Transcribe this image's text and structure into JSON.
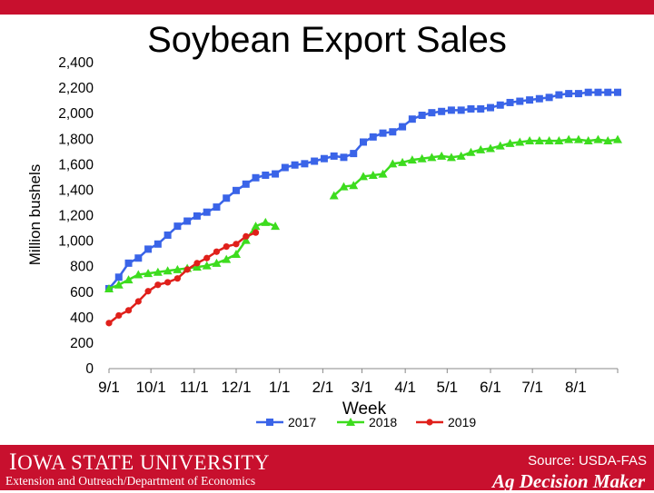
{
  "title": "Soybean Export Sales",
  "footer": {
    "university_first": "I",
    "university_rest": "OWA STATE UNIVERSITY",
    "department": "Extension and Outreach/Department of Economics",
    "source": "Source: USDA-FAS",
    "brand": "Ag Decision Maker"
  },
  "colors": {
    "banner": "#c8102e",
    "series_2017": "#3a64e8",
    "series_2018": "#3ddc1e",
    "series_2019": "#e0201b"
  },
  "chart_data": {
    "type": "line",
    "title": "Soybean Export Sales",
    "xlabel": "Week",
    "ylabel": "Million bushels",
    "ylim": [
      0,
      2400
    ],
    "yticks": [
      0,
      200,
      400,
      600,
      800,
      1000,
      1200,
      1400,
      1600,
      1800,
      2000,
      2200,
      2400
    ],
    "xticks": [
      "9/1",
      "10/1",
      "11/1",
      "12/1",
      "1/1",
      "2/1",
      "3/1",
      "4/1",
      "5/1",
      "6/1",
      "7/1",
      "8/1"
    ],
    "grid": false,
    "legend": "bottom",
    "series": [
      {
        "name": "2017",
        "marker": "square",
        "points": [
          [
            "9/1",
            620
          ],
          [
            "9/8",
            710
          ],
          [
            "9/15",
            820
          ],
          [
            "9/22",
            860
          ],
          [
            "9/29",
            930
          ],
          [
            "10/6",
            970
          ],
          [
            "10/13",
            1040
          ],
          [
            "10/20",
            1110
          ],
          [
            "10/27",
            1150
          ],
          [
            "11/3",
            1190
          ],
          [
            "11/10",
            1220
          ],
          [
            "11/17",
            1260
          ],
          [
            "11/24",
            1330
          ],
          [
            "12/1",
            1390
          ],
          [
            "12/8",
            1440
          ],
          [
            "12/15",
            1490
          ],
          [
            "12/22",
            1510
          ],
          [
            "12/29",
            1520
          ],
          [
            "1/5",
            1570
          ],
          [
            "1/12",
            1590
          ],
          [
            "1/19",
            1600
          ],
          [
            "1/26",
            1620
          ],
          [
            "2/2",
            1640
          ],
          [
            "2/9",
            1660
          ],
          [
            "2/16",
            1650
          ],
          [
            "2/23",
            1680
          ],
          [
            "3/2",
            1770
          ],
          [
            "3/9",
            1810
          ],
          [
            "3/16",
            1840
          ],
          [
            "3/23",
            1850
          ],
          [
            "3/30",
            1890
          ],
          [
            "4/6",
            1950
          ],
          [
            "4/13",
            1980
          ],
          [
            "4/20",
            2000
          ],
          [
            "4/27",
            2010
          ],
          [
            "5/4",
            2020
          ],
          [
            "5/11",
            2020
          ],
          [
            "5/18",
            2030
          ],
          [
            "5/25",
            2030
          ],
          [
            "6/1",
            2040
          ],
          [
            "6/8",
            2060
          ],
          [
            "6/15",
            2080
          ],
          [
            "6/22",
            2090
          ],
          [
            "6/29",
            2100
          ],
          [
            "7/6",
            2110
          ],
          [
            "7/13",
            2120
          ],
          [
            "7/20",
            2140
          ],
          [
            "7/27",
            2150
          ],
          [
            "8/3",
            2150
          ],
          [
            "8/10",
            2160
          ],
          [
            "8/17",
            2160
          ],
          [
            "8/24",
            2160
          ],
          [
            "8/31",
            2160
          ]
        ]
      },
      {
        "name": "2018",
        "marker": "triangle",
        "points": [
          [
            "9/1",
            620
          ],
          [
            "9/8",
            650
          ],
          [
            "9/15",
            690
          ],
          [
            "9/22",
            730
          ],
          [
            "9/29",
            740
          ],
          [
            "10/6",
            750
          ],
          [
            "10/13",
            760
          ],
          [
            "10/20",
            770
          ],
          [
            "10/27",
            780
          ],
          [
            "11/3",
            790
          ],
          [
            "11/10",
            800
          ],
          [
            "11/17",
            820
          ],
          [
            "11/24",
            850
          ],
          [
            "12/1",
            890
          ],
          [
            "12/8",
            1000
          ],
          [
            "12/15",
            1110
          ],
          [
            "12/22",
            1140
          ],
          [
            "12/29",
            1110
          ],
          null,
          [
            "2/9",
            1350
          ],
          [
            "2/16",
            1420
          ],
          [
            "2/23",
            1430
          ],
          [
            "3/2",
            1500
          ],
          [
            "3/9",
            1510
          ],
          [
            "3/16",
            1520
          ],
          [
            "3/23",
            1600
          ],
          [
            "3/30",
            1610
          ],
          [
            "4/6",
            1630
          ],
          [
            "4/13",
            1640
          ],
          [
            "4/20",
            1650
          ],
          [
            "4/27",
            1660
          ],
          [
            "5/4",
            1650
          ],
          [
            "5/11",
            1660
          ],
          [
            "5/18",
            1690
          ],
          [
            "5/25",
            1710
          ],
          [
            "6/1",
            1720
          ],
          [
            "6/8",
            1740
          ],
          [
            "6/15",
            1760
          ],
          [
            "6/22",
            1770
          ],
          [
            "6/29",
            1780
          ],
          [
            "7/6",
            1780
          ],
          [
            "7/13",
            1780
          ],
          [
            "7/20",
            1780
          ],
          [
            "7/27",
            1790
          ],
          [
            "8/3",
            1790
          ],
          [
            "8/10",
            1780
          ],
          [
            "8/17",
            1790
          ],
          [
            "8/24",
            1780
          ],
          [
            "8/31",
            1790
          ]
        ]
      },
      {
        "name": "2019",
        "marker": "circle",
        "points": [
          [
            "9/1",
            350
          ],
          [
            "9/8",
            410
          ],
          [
            "9/15",
            450
          ],
          [
            "9/22",
            520
          ],
          [
            "9/29",
            600
          ],
          [
            "10/6",
            650
          ],
          [
            "10/13",
            670
          ],
          [
            "10/20",
            700
          ],
          [
            "10/27",
            770
          ],
          [
            "11/3",
            820
          ],
          [
            "11/10",
            860
          ],
          [
            "11/17",
            910
          ],
          [
            "11/24",
            950
          ],
          [
            "12/1",
            970
          ],
          [
            "12/8",
            1030
          ],
          [
            "12/15",
            1060
          ]
        ]
      }
    ]
  }
}
